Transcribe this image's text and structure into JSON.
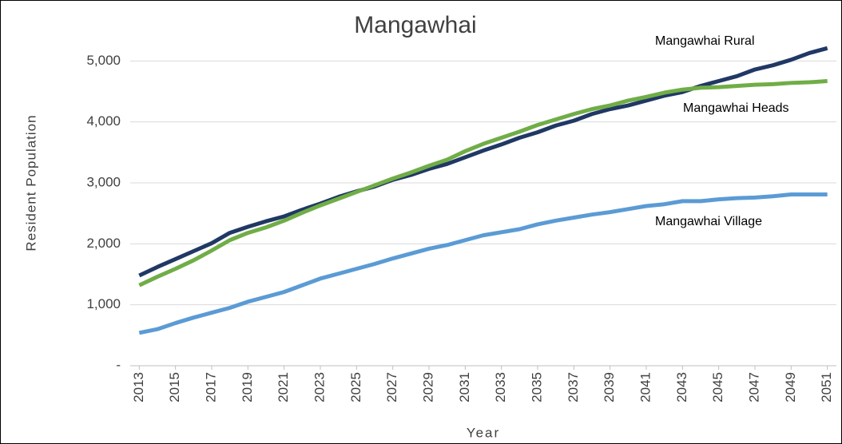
{
  "chart_data": {
    "type": "line",
    "title": "Mangawhai",
    "x_label": "Year",
    "y_label": "Resident Population",
    "x": [
      2013,
      2014,
      2015,
      2016,
      2017,
      2018,
      2019,
      2020,
      2021,
      2022,
      2023,
      2024,
      2025,
      2026,
      2027,
      2028,
      2029,
      2030,
      2031,
      2032,
      2033,
      2034,
      2035,
      2036,
      2037,
      2038,
      2039,
      2040,
      2041,
      2042,
      2043,
      2044,
      2045,
      2046,
      2047,
      2048,
      2049,
      2050,
      2051
    ],
    "series": [
      {
        "name": "Mangawhai Rural",
        "color": "#203864",
        "values": [
          1480,
          1620,
          1750,
          1880,
          2010,
          2180,
          2280,
          2370,
          2450,
          2560,
          2660,
          2770,
          2860,
          2940,
          3050,
          3130,
          3230,
          3310,
          3420,
          3530,
          3630,
          3740,
          3830,
          3940,
          4020,
          4130,
          4210,
          4270,
          4350,
          4430,
          4490,
          4590,
          4670,
          4750,
          4860,
          4930,
          5020,
          5130,
          5210
        ]
      },
      {
        "name": "Mangawhai Heads",
        "color": "#70ad47",
        "values": [
          1320,
          1460,
          1590,
          1730,
          1890,
          2060,
          2180,
          2270,
          2380,
          2510,
          2630,
          2740,
          2850,
          2960,
          3070,
          3170,
          3280,
          3380,
          3520,
          3640,
          3740,
          3840,
          3950,
          4040,
          4130,
          4210,
          4270,
          4350,
          4410,
          4480,
          4530,
          4560,
          4570,
          4590,
          4610,
          4620,
          4640,
          4650,
          4670
        ]
      },
      {
        "name": "Mangawhai Village",
        "color": "#5b9bd5",
        "values": [
          540,
          600,
          700,
          790,
          870,
          950,
          1050,
          1130,
          1210,
          1320,
          1430,
          1510,
          1590,
          1670,
          1760,
          1840,
          1920,
          1980,
          2060,
          2140,
          2190,
          2240,
          2320,
          2380,
          2430,
          2480,
          2520,
          2570,
          2620,
          2650,
          2700,
          2700,
          2730,
          2750,
          2760,
          2780,
          2810,
          2810,
          2810
        ]
      }
    ],
    "xlim": [
      2012.5,
      2051.5
    ],
    "xticks": [
      2013,
      2015,
      2017,
      2019,
      2021,
      2023,
      2025,
      2027,
      2029,
      2031,
      2033,
      2035,
      2037,
      2039,
      2041,
      2043,
      2045,
      2047,
      2049,
      2051
    ],
    "ylim": [
      0,
      6000
    ],
    "yticks": [
      {
        "value": 0,
        "label": "-"
      },
      {
        "value": 1000,
        "label": "1,000"
      },
      {
        "value": 2000,
        "label": "2,000"
      },
      {
        "value": 3000,
        "label": "3,000"
      },
      {
        "value": 4000,
        "label": "4,000"
      },
      {
        "value": 5000,
        "label": "5,000"
      }
    ],
    "grid": true
  }
}
